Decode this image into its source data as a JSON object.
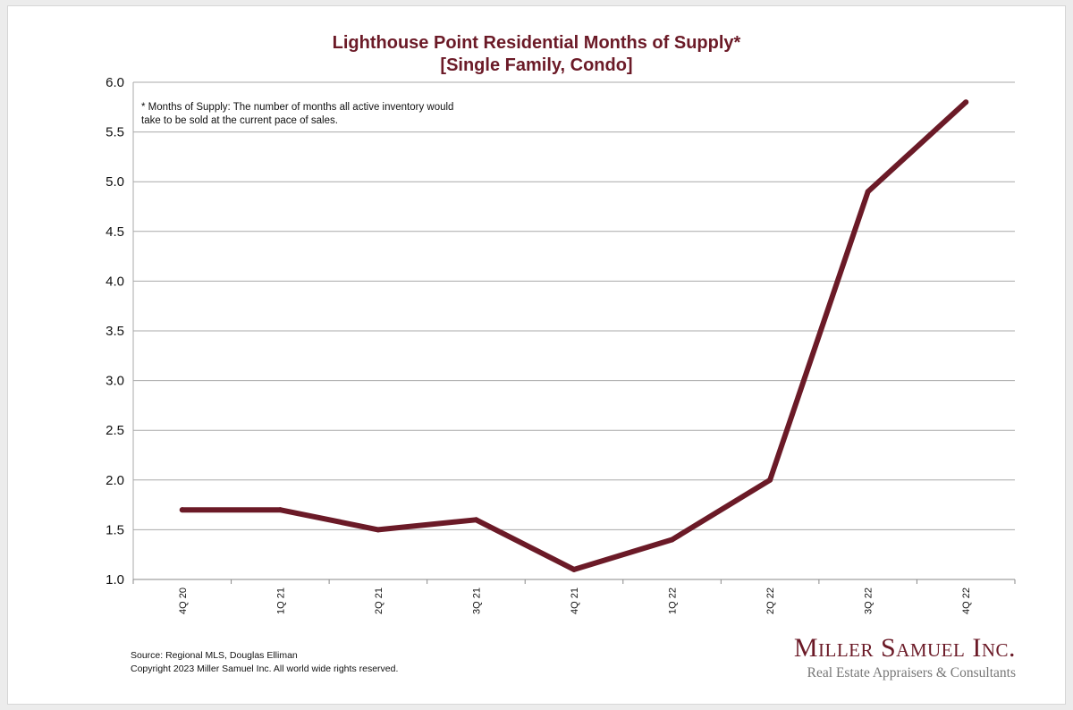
{
  "chart_data": {
    "type": "line",
    "title": "Lighthouse Point Residential Months of Supply*",
    "subtitle": "[Single Family, Condo]",
    "categories": [
      "4Q 20",
      "1Q 21",
      "2Q 21",
      "3Q 21",
      "4Q 21",
      "1Q 22",
      "2Q 22",
      "3Q 22",
      "4Q 22"
    ],
    "series": [
      {
        "values": [
          1.7,
          1.7,
          1.5,
          1.6,
          1.1,
          1.4,
          2.0,
          4.9,
          5.8
        ],
        "color": "#6b1a27"
      }
    ],
    "ylim": [
      1.0,
      6.0
    ],
    "yticks": [
      "1.0",
      "1.5",
      "2.0",
      "2.5",
      "3.0",
      "3.5",
      "4.0",
      "4.5",
      "5.0",
      "5.5",
      "6.0"
    ],
    "ytick_values": [
      1.0,
      1.5,
      2.0,
      2.5,
      3.0,
      3.5,
      4.0,
      4.5,
      5.0,
      5.5,
      6.0
    ],
    "xlabel": "",
    "ylabel": "",
    "grid": "horizontal",
    "legend": "none",
    "annotation": "* Months of Supply: The number of months all active inventory would take to be sold at the current pace of sales."
  },
  "footer": {
    "source": "Source: Regional MLS, Douglas Elliman",
    "copyright": "Copyright 2023 Miller Samuel Inc.  All world wide rights reserved."
  },
  "brand": {
    "name": "Miller Samuel Inc.",
    "tagline": "Real Estate Appraisers & Consultants",
    "color": "#6b1a27"
  }
}
